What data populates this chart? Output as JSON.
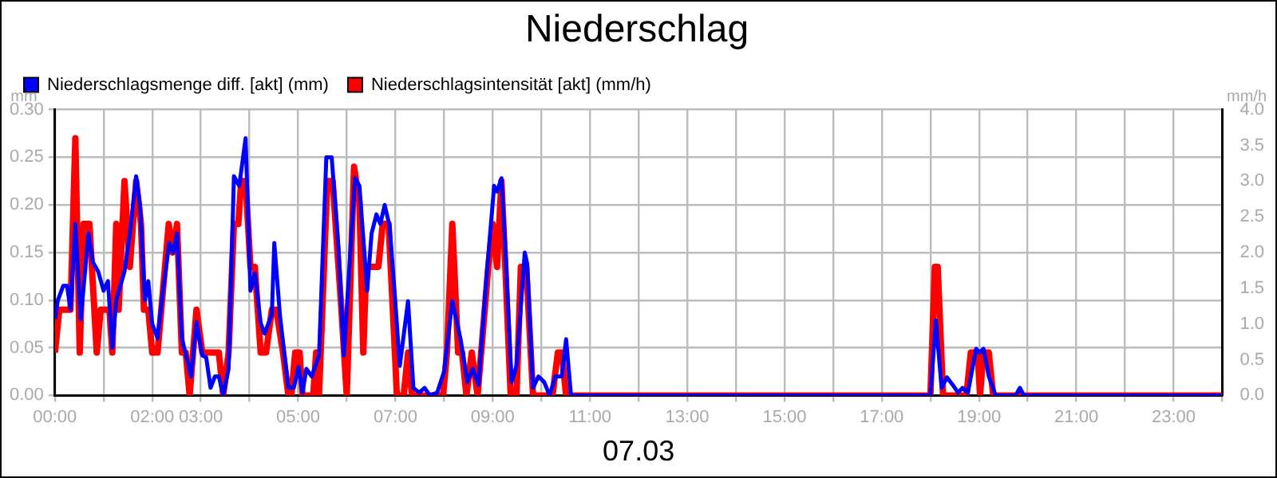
{
  "chart_data": {
    "type": "line",
    "title": "Niederschlag",
    "xlabel": "07.03",
    "ylabel": "mm",
    "y2label": "mm/h",
    "xlim": [
      0,
      24
    ],
    "xticks": [
      {
        "value": 0,
        "label": "00:00"
      },
      {
        "value": 1,
        "label": null
      },
      {
        "value": 2,
        "label": "02:00"
      },
      {
        "value": 3,
        "label": "03:00"
      },
      {
        "value": 4,
        "label": null
      },
      {
        "value": 5,
        "label": "05:00"
      },
      {
        "value": 6,
        "label": null
      },
      {
        "value": 7,
        "label": "07:00"
      },
      {
        "value": 8,
        "label": null
      },
      {
        "value": 9,
        "label": "09:00"
      },
      {
        "value": 10,
        "label": null
      },
      {
        "value": 11,
        "label": "11:00"
      },
      {
        "value": 12,
        "label": null
      },
      {
        "value": 13,
        "label": "13:00"
      },
      {
        "value": 14,
        "label": null
      },
      {
        "value": 15,
        "label": "15:00"
      },
      {
        "value": 16,
        "label": null
      },
      {
        "value": 17,
        "label": "17:00"
      },
      {
        "value": 18,
        "label": null
      },
      {
        "value": 19,
        "label": "19:00"
      },
      {
        "value": 20,
        "label": null
      },
      {
        "value": 21,
        "label": "21:00"
      },
      {
        "value": 22,
        "label": null
      },
      {
        "value": 23,
        "label": "23:00"
      },
      {
        "value": 24,
        "label": null
      }
    ],
    "ylim": [
      0,
      0.3
    ],
    "yticks": [
      {
        "value": 0,
        "label": "0.00"
      },
      {
        "value": 0.05,
        "label": "0.05"
      },
      {
        "value": 0.1,
        "label": "0.10"
      },
      {
        "value": 0.15,
        "label": "0.15"
      },
      {
        "value": 0.2,
        "label": "0.20"
      },
      {
        "value": 0.25,
        "label": "0.25"
      },
      {
        "value": 0.3,
        "label": "0.30"
      }
    ],
    "y2lim": [
      0,
      4
    ],
    "y2ticks": [
      {
        "value": 0,
        "label": "0.0"
      },
      {
        "value": 0.5,
        "label": "0.5"
      },
      {
        "value": 1,
        "label": "1.0"
      },
      {
        "value": 1.5,
        "label": "1.5"
      },
      {
        "value": 2,
        "label": "2.0"
      },
      {
        "value": 2.5,
        "label": "2.5"
      },
      {
        "value": 3,
        "label": "3.0"
      },
      {
        "value": 3.5,
        "label": "3.5"
      },
      {
        "value": 4,
        "label": "4.0"
      }
    ],
    "grid": true,
    "legend": "top left",
    "marker": "none",
    "line_style": "solid",
    "series": [
      {
        "name": "Niederschlagsmenge diff. [akt] (mm)",
        "color": "#0000ff",
        "x": [
          0,
          0.06,
          0.17,
          0.25,
          0.32,
          0.42,
          0.53,
          0.69,
          0.78,
          0.89,
          1.0,
          1.09,
          1.18,
          1.26,
          1.43,
          1.54,
          1.67,
          1.75,
          1.85,
          1.92,
          2.0,
          2.11,
          2.21,
          2.35,
          2.43,
          2.51,
          2.61,
          2.8,
          2.91,
          3.03,
          3.11,
          3.2,
          3.29,
          3.37,
          3.46,
          3.57,
          3.68,
          3.79,
          3.92,
          4.02,
          4.11,
          4.23,
          4.31,
          4.46,
          4.51,
          4.63,
          4.8,
          4.91,
          5.01,
          5.09,
          5.17,
          5.28,
          5.43,
          5.58,
          5.69,
          5.83,
          5.94,
          6.17,
          6.26,
          6.42,
          6.51,
          6.61,
          6.69,
          6.78,
          6.88,
          6.99,
          7.09,
          7.26,
          7.37,
          7.49,
          7.6,
          7.71,
          7.86,
          8.0,
          8.17,
          8.34,
          8.48,
          8.59,
          8.71,
          8.86,
          9.03,
          9.09,
          9.18,
          9.26,
          9.39,
          9.49,
          9.66,
          9.71,
          9.83,
          9.94,
          10.06,
          10.17,
          10.29,
          10.42,
          10.51,
          10.61,
          18.0,
          18.11,
          18.23,
          18.34,
          18.46,
          18.57,
          18.66,
          18.77,
          18.94,
          19.01,
          19.09,
          19.2,
          19.34,
          19.75,
          19.84,
          19.92,
          24
        ],
        "values": [
          0.08,
          0.1,
          0.115,
          0.115,
          0.09,
          0.18,
          0.08,
          0.17,
          0.14,
          0.13,
          0.11,
          0.12,
          0.05,
          0.1,
          0.13,
          0.17,
          0.23,
          0.2,
          0.1,
          0.12,
          0.075,
          0.06,
          0.105,
          0.16,
          0.15,
          0.17,
          0.06,
          0.02,
          0.077,
          0.042,
          0.04,
          0.008,
          0.02,
          0.02,
          0,
          0.028,
          0.23,
          0.22,
          0.27,
          0.11,
          0.128,
          0.076,
          0.065,
          0.085,
          0.16,
          0.082,
          0.008,
          0.008,
          0.03,
          0.003,
          0.028,
          0.02,
          0.042,
          0.25,
          0.25,
          0.155,
          0.042,
          0.228,
          0.22,
          0.11,
          0.17,
          0.19,
          0.18,
          0.2,
          0.178,
          0.104,
          0.031,
          0.099,
          0.008,
          0.003,
          0.008,
          0,
          0.003,
          0.025,
          0.099,
          0.059,
          0.014,
          0.028,
          0.011,
          0.116,
          0.22,
          0.214,
          0.228,
          0.155,
          0.014,
          0.031,
          0.15,
          0.138,
          0.008,
          0.02,
          0.014,
          0,
          0.02,
          0.02,
          0.059,
          0,
          0,
          0.079,
          0.008,
          0.019,
          0.011,
          0.003,
          0.008,
          0.003,
          0.049,
          0.045,
          0.049,
          0.02,
          0,
          0,
          0.008,
          0,
          0
        ]
      },
      {
        "name": "Niederschlagsintensität [akt] (mm/h)",
        "color": "#ff0000",
        "axis": "y2",
        "x": [
          0,
          0.09,
          0.32,
          0.42,
          0.51,
          0.59,
          0.71,
          0.86,
          0.94,
          1.12,
          1.18,
          1.26,
          1.31,
          1.43,
          1.54,
          1.67,
          1.77,
          1.83,
          1.92,
          2.0,
          2.11,
          2.34,
          2.42,
          2.51,
          2.61,
          2.69,
          2.77,
          2.91,
          3.03,
          3.37,
          3.46,
          3.57,
          3.68,
          3.77,
          3.83,
          3.92,
          4.02,
          4.11,
          4.23,
          4.34,
          4.46,
          4.55,
          4.69,
          4.8,
          4.86,
          4.94,
          5.03,
          5.09,
          5.31,
          5.37,
          5.43,
          5.6,
          5.71,
          5.89,
          6.0,
          6.15,
          6.26,
          6.34,
          6.4,
          6.65,
          6.74,
          6.86,
          6.99,
          7.03,
          7.17,
          7.26,
          7.34,
          7.98,
          8.06,
          8.17,
          8.29,
          8.37,
          8.46,
          8.57,
          8.69,
          8.91,
          9.0,
          9.09,
          9.18,
          9.26,
          9.37,
          9.49,
          9.58,
          9.69,
          9.83,
          10.23,
          10.34,
          10.42,
          10.51,
          18.0,
          18.09,
          18.15,
          18.26,
          18.74,
          18.83,
          18.97,
          19.02,
          19.09,
          19.2,
          19.29,
          24
        ],
        "values": [
          0.6,
          1.2,
          1.2,
          3.6,
          0.6,
          2.4,
          2.4,
          0.6,
          1.2,
          1.2,
          0.6,
          2.4,
          1.2,
          3.0,
          1.8,
          3.0,
          2.4,
          1.2,
          1.2,
          0.6,
          0.6,
          2.4,
          2.0,
          2.4,
          0.6,
          0.6,
          0,
          1.2,
          0.6,
          0.6,
          0,
          0.6,
          2.4,
          2.4,
          3.0,
          3.0,
          1.8,
          1.8,
          0.6,
          0.6,
          1.2,
          1.2,
          0.6,
          0,
          0,
          0.6,
          0.6,
          0,
          0,
          0.6,
          0,
          3.0,
          3.0,
          1.2,
          0,
          3.2,
          2.7,
          0.6,
          1.8,
          1.8,
          2.4,
          2.4,
          0.6,
          0,
          0,
          0.6,
          0,
          0,
          0.6,
          2.4,
          0.6,
          0.6,
          0,
          0.6,
          0,
          1.8,
          2.4,
          1.8,
          3.0,
          1.8,
          0,
          0,
          1.8,
          1.8,
          0,
          0,
          0.6,
          0.6,
          0,
          0,
          1.8,
          1.8,
          0,
          0,
          0.6,
          0.6,
          0,
          0.6,
          0.6,
          0,
          0
        ]
      }
    ]
  }
}
